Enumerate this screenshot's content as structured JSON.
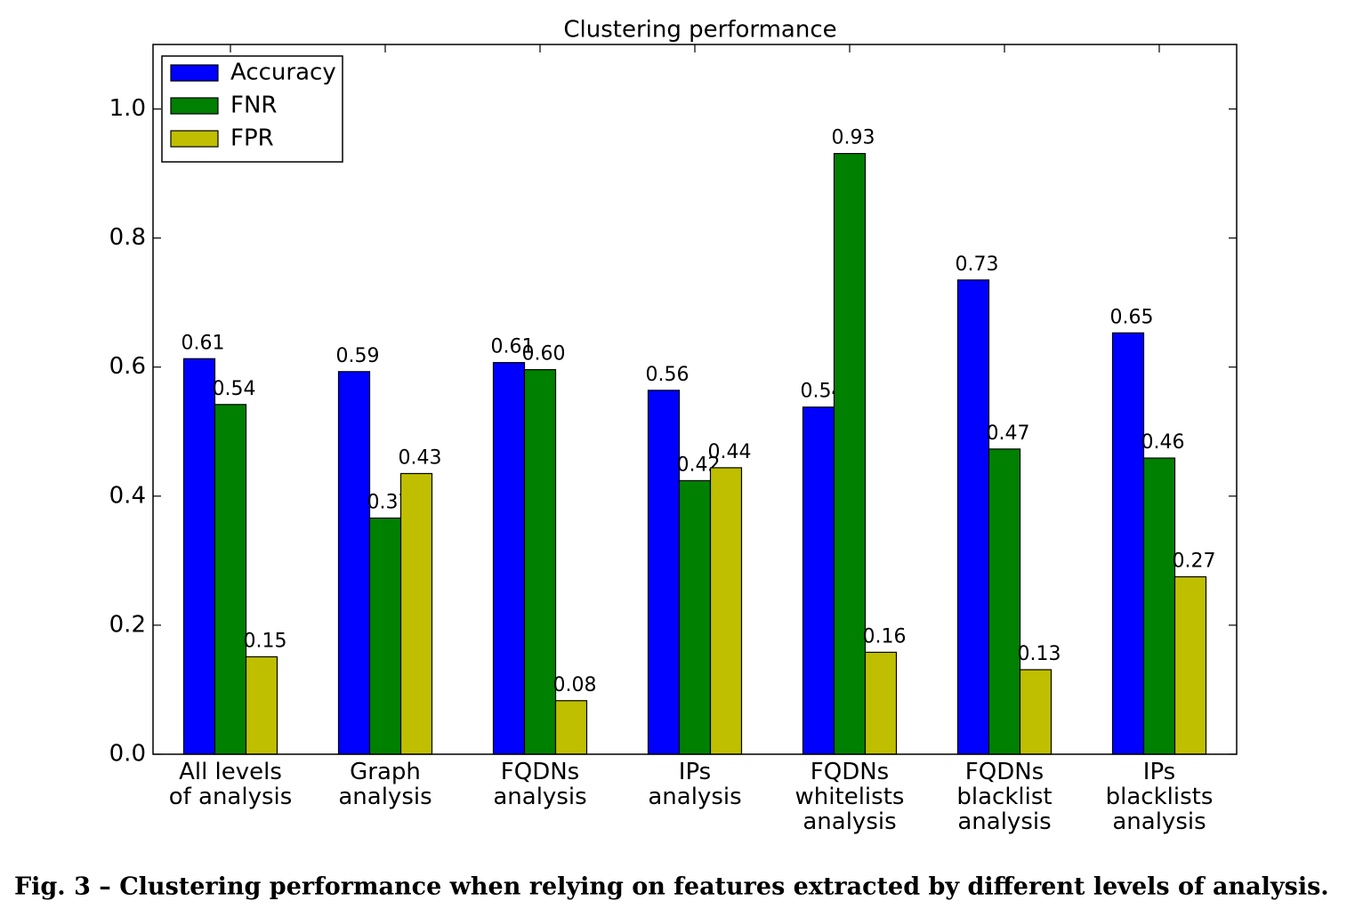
{
  "chart_data": {
    "type": "bar",
    "title": "Clustering performance",
    "categories": [
      [
        "All levels",
        "of analysis"
      ],
      [
        "Graph",
        "analysis"
      ],
      [
        "FQDNs",
        "analysis"
      ],
      [
        "IPs",
        "analysis"
      ],
      [
        "FQDNs",
        "whitelists",
        "analysis"
      ],
      [
        "FQDNs",
        "blacklist",
        "analysis"
      ],
      [
        "IPs",
        "blacklists",
        "analysis"
      ]
    ],
    "series": [
      {
        "name": "Accuracy",
        "color": "#0000ff",
        "values": [
          0.613,
          0.593,
          0.607,
          0.564,
          0.538,
          0.735,
          0.653
        ],
        "value_labels": [
          "0.61",
          "0.59",
          "0.61",
          "0.56",
          "0.54",
          "0.73",
          "0.65"
        ]
      },
      {
        "name": "FNR",
        "color": "#008000",
        "values": [
          0.542,
          0.366,
          0.596,
          0.424,
          0.931,
          0.473,
          0.459
        ],
        "value_labels": [
          "0.54",
          "0.37",
          "0.60",
          "0.42",
          "0.93",
          "0.47",
          "0.46"
        ]
      },
      {
        "name": "FPR",
        "color": "#bfbf00",
        "values": [
          0.151,
          0.435,
          0.083,
          0.444,
          0.158,
          0.131,
          0.275
        ],
        "value_labels": [
          "0.15",
          "0.43",
          "0.08",
          "0.44",
          "0.16",
          "0.13",
          "0.27"
        ]
      }
    ],
    "ylim": [
      0,
      1.1
    ],
    "yticks": [
      {
        "value": 0,
        "label": "0.0"
      },
      0.2,
      0.4,
      0.6,
      0.8,
      {
        "value": 1,
        "label": "1.0"
      }
    ],
    "grid": false,
    "legend": "upper left"
  },
  "caption": "Fig. 3 – Clustering performance when relying on features extracted by different levels of analysis."
}
